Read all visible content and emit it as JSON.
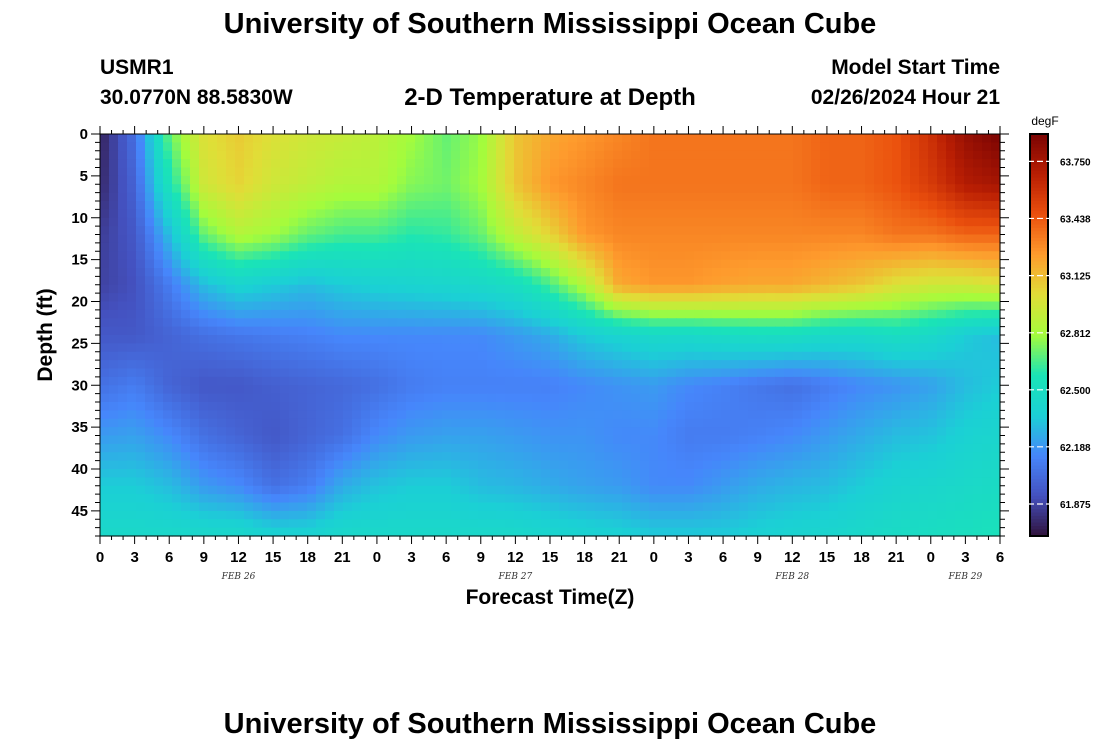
{
  "header": {
    "title": "University of Southern Mississippi Ocean Cube",
    "station_id": "USMR1",
    "coordinates": "30.0770N  88.5830W",
    "subtitle": "2-D Temperature at Depth",
    "model_start_label": "Model Start Time",
    "model_start_value": "02/26/2024 Hour 21"
  },
  "footer": {
    "title": "University of Southern Mississippi Ocean Cube"
  },
  "chart_data": {
    "type": "heatmap",
    "title": "2-D Temperature at Depth",
    "xlabel": "Forecast Time(Z)",
    "ylabel": "Depth (ft)",
    "units": "degF",
    "x_hours": [
      0,
      3,
      6,
      9,
      12,
      15,
      18,
      21,
      24,
      27,
      30,
      33,
      36,
      39,
      42,
      45,
      48,
      51,
      54,
      57,
      60,
      63,
      66,
      69,
      72,
      75,
      78
    ],
    "x_tick_labels": [
      "0",
      "3",
      "6",
      "9",
      "12",
      "15",
      "18",
      "21",
      "0",
      "3",
      "6",
      "9",
      "12",
      "15",
      "18",
      "21",
      "0",
      "3",
      "6",
      "9",
      "12",
      "15",
      "18",
      "21",
      "0",
      "3",
      "6"
    ],
    "date_labels": [
      {
        "text": "FEB 26",
        "hour": 12
      },
      {
        "text": "FEB 27",
        "hour": 36
      },
      {
        "text": "FEB 28",
        "hour": 60
      },
      {
        "text": "FEB 29",
        "hour": 75
      }
    ],
    "y_ticks": [
      0,
      5,
      10,
      15,
      20,
      25,
      30,
      35,
      40,
      45
    ],
    "ylim": [
      48,
      0
    ],
    "xlim": [
      0,
      78
    ],
    "colorbar": {
      "min": 61.7,
      "max": 63.9,
      "tick_values": [
        63.75,
        63.438,
        63.125,
        62.812,
        62.5,
        62.188,
        61.875
      ],
      "tick_labels": [
        "63.750",
        "63.438",
        "63.125",
        "62.812",
        "62.500",
        "62.188",
        "61.875"
      ]
    },
    "depth_rows": [
      0,
      6,
      12,
      18,
      24,
      30,
      36,
      42,
      48
    ],
    "temperature_columns": [
      {
        "hour": 0,
        "temps": [
          61.75,
          61.78,
          61.85,
          61.87,
          61.95,
          62.05,
          62.2,
          62.35,
          62.45
        ]
      },
      {
        "hour": 3,
        "temps": [
          62.05,
          62.0,
          61.95,
          61.92,
          61.95,
          62.1,
          62.22,
          62.35,
          62.45
        ]
      },
      {
        "hour": 6,
        "temps": [
          62.7,
          62.55,
          62.3,
          62.1,
          62.0,
          62.0,
          62.15,
          62.3,
          62.45
        ]
      },
      {
        "hour": 9,
        "temps": [
          63.0,
          62.95,
          62.7,
          62.3,
          62.05,
          61.95,
          62.05,
          62.2,
          62.45
        ]
      },
      {
        "hour": 12,
        "temps": [
          63.08,
          63.05,
          62.85,
          62.4,
          62.08,
          61.95,
          62.0,
          62.15,
          62.45
        ]
      },
      {
        "hour": 15,
        "temps": [
          63.0,
          62.95,
          62.8,
          62.35,
          62.1,
          61.98,
          61.95,
          62.05,
          62.4
        ]
      },
      {
        "hour": 18,
        "temps": [
          62.95,
          62.9,
          62.7,
          62.3,
          62.12,
          62.0,
          62.0,
          62.1,
          62.4
        ]
      },
      {
        "hour": 21,
        "temps": [
          62.92,
          62.85,
          62.65,
          62.35,
          62.15,
          62.02,
          62.05,
          62.25,
          62.45
        ]
      },
      {
        "hour": 24,
        "temps": [
          62.88,
          62.85,
          62.65,
          62.38,
          62.15,
          62.05,
          62.15,
          62.32,
          62.45
        ]
      },
      {
        "hour": 27,
        "temps": [
          62.8,
          62.75,
          62.6,
          62.4,
          62.15,
          62.1,
          62.2,
          62.35,
          62.45
        ]
      },
      {
        "hour": 30,
        "temps": [
          62.7,
          62.72,
          62.62,
          62.42,
          62.15,
          62.12,
          62.22,
          62.35,
          62.45
        ]
      },
      {
        "hour": 33,
        "temps": [
          62.78,
          62.8,
          62.7,
          62.45,
          62.15,
          62.12,
          62.22,
          62.3,
          62.45
        ]
      },
      {
        "hour": 36,
        "temps": [
          63.1,
          63.1,
          62.9,
          62.5,
          62.2,
          62.12,
          62.2,
          62.28,
          62.45
        ]
      },
      {
        "hour": 39,
        "temps": [
          63.2,
          63.25,
          63.05,
          62.65,
          62.25,
          62.12,
          62.18,
          62.25,
          62.42
        ]
      },
      {
        "hour": 42,
        "temps": [
          63.25,
          63.3,
          63.25,
          62.85,
          62.35,
          62.15,
          62.18,
          62.22,
          62.4
        ]
      },
      {
        "hour": 45,
        "temps": [
          63.3,
          63.35,
          63.3,
          63.2,
          62.4,
          62.18,
          62.15,
          62.2,
          62.38
        ]
      },
      {
        "hour": 48,
        "temps": [
          63.35,
          63.35,
          63.3,
          63.25,
          62.45,
          62.2,
          62.15,
          62.15,
          62.35
        ]
      },
      {
        "hour": 51,
        "temps": [
          63.35,
          63.35,
          63.3,
          63.25,
          62.45,
          62.15,
          62.1,
          62.15,
          62.35
        ]
      },
      {
        "hour": 54,
        "temps": [
          63.35,
          63.35,
          63.3,
          63.22,
          62.48,
          62.12,
          62.1,
          62.2,
          62.35
        ]
      },
      {
        "hour": 57,
        "temps": [
          63.35,
          63.35,
          63.3,
          63.2,
          62.5,
          62.08,
          62.12,
          62.25,
          62.38
        ]
      },
      {
        "hour": 60,
        "temps": [
          63.35,
          63.35,
          63.3,
          63.2,
          62.5,
          62.05,
          62.15,
          62.28,
          62.4
        ]
      },
      {
        "hour": 63,
        "temps": [
          63.4,
          63.4,
          63.3,
          63.15,
          62.45,
          62.1,
          62.2,
          62.3,
          62.42
        ]
      },
      {
        "hour": 66,
        "temps": [
          63.4,
          63.4,
          63.3,
          63.1,
          62.45,
          62.15,
          62.25,
          62.35,
          62.45
        ]
      },
      {
        "hour": 69,
        "temps": [
          63.45,
          63.45,
          63.35,
          63.0,
          62.5,
          62.18,
          62.3,
          62.4,
          62.48
        ]
      },
      {
        "hour": 72,
        "temps": [
          63.6,
          63.55,
          63.35,
          62.95,
          62.45,
          62.22,
          62.32,
          62.42,
          62.5
        ]
      },
      {
        "hour": 75,
        "temps": [
          63.8,
          63.7,
          63.4,
          62.95,
          62.35,
          62.3,
          62.38,
          62.45,
          62.52
        ]
      },
      {
        "hour": 78,
        "temps": [
          63.9,
          63.75,
          63.4,
          63.0,
          62.3,
          62.35,
          62.42,
          62.48,
          62.55
        ]
      }
    ]
  }
}
